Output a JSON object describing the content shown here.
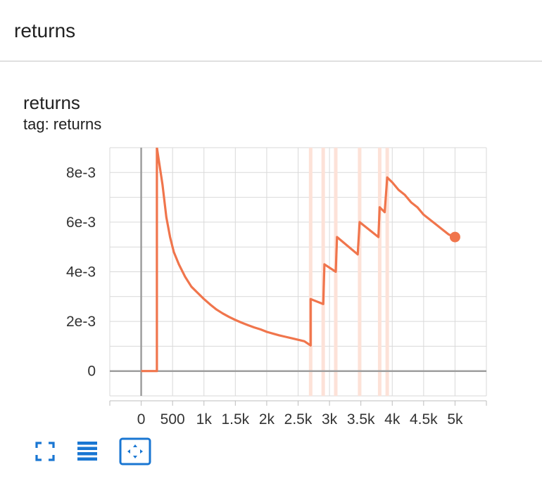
{
  "header": {
    "title": "returns"
  },
  "card": {
    "title": "returns",
    "subtitle": "tag: returns"
  },
  "colors": {
    "series": "#f0754c",
    "series_light": "#fde2d8",
    "grid": "#d9d9d9",
    "axis_zero": "#9e9e9e",
    "toolbar_icon": "#1976d2"
  },
  "chart_data": {
    "type": "line",
    "title": "",
    "xlabel": "",
    "ylabel": "",
    "xlim": [
      -500,
      5500
    ],
    "ylim": [
      -0.001,
      0.009
    ],
    "x_ticks": [
      0,
      500,
      1000,
      1500,
      2000,
      2500,
      3000,
      3500,
      4000,
      4500,
      5000
    ],
    "x_tick_labels": [
      "0",
      "500",
      "1k",
      "1.5k",
      "2k",
      "2.5k",
      "3k",
      "3.5k",
      "4k",
      "4.5k",
      "5k"
    ],
    "y_ticks": [
      0,
      0.002,
      0.004,
      0.006,
      0.008
    ],
    "y_tick_labels": [
      "0",
      "2e-3",
      "4e-3",
      "6e-3",
      "8e-3"
    ],
    "grid": true,
    "series": [
      {
        "x": [
          0,
          250,
          250,
          340,
          400,
          460,
          520,
          600,
          700,
          800,
          900,
          1000,
          1100,
          1200,
          1300,
          1400,
          1500,
          1600,
          1700,
          1800,
          1900,
          2000,
          2100,
          2200,
          2300,
          2400,
          2500,
          2600,
          2700,
          2700,
          2900,
          2920,
          3100,
          3120,
          3450,
          3480,
          3780,
          3800,
          3880,
          3920,
          4000,
          4100,
          4200,
          4300,
          4400,
          4500,
          4600,
          4700,
          4800,
          4900,
          5000
        ],
        "y": [
          0,
          0,
          0.009,
          0.0075,
          0.0062,
          0.0054,
          0.0048,
          0.0043,
          0.0038,
          0.0034,
          0.00315,
          0.0029,
          0.00268,
          0.00248,
          0.00232,
          0.00218,
          0.00206,
          0.00195,
          0.00185,
          0.00176,
          0.00168,
          0.00158,
          0.00151,
          0.00144,
          0.00138,
          0.00132,
          0.00126,
          0.0012,
          0.00103,
          0.0029,
          0.0027,
          0.0043,
          0.004,
          0.0054,
          0.0047,
          0.006,
          0.0054,
          0.0066,
          0.0064,
          0.0078,
          0.0076,
          0.0073,
          0.0071,
          0.0068,
          0.0066,
          0.0063,
          0.0061,
          0.0059,
          0.0057,
          0.0055,
          0.0054
        ]
      }
    ],
    "highlight_lines_x": [
      2700,
      2900,
      3100,
      3480,
      3800,
      3920
    ],
    "end_marker": {
      "x": 5000,
      "y": 0.0054
    }
  },
  "toolbar": [
    {
      "name": "fullscreen-icon"
    },
    {
      "name": "toggle-y-log-icon"
    },
    {
      "name": "fit-domain-icon"
    }
  ]
}
